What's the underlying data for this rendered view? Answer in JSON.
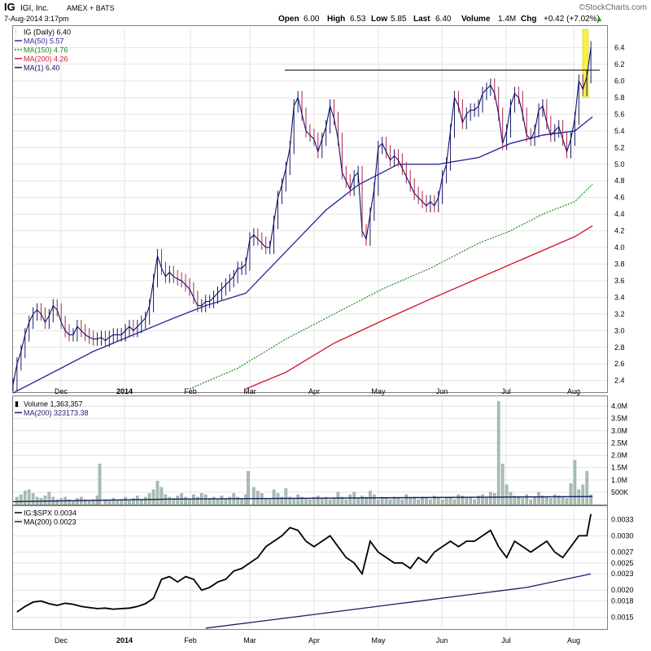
{
  "header": {
    "symbol": "IG",
    "company": "IGI, Inc.",
    "exchange": "AMEX + BATS",
    "datetime": "7-Aug-2014 3:17pm",
    "open_label": "Open",
    "open": "6.00",
    "high_label": "High",
    "high": "6.53",
    "low_label": "Low",
    "low": "5.85",
    "last_label": "Last",
    "last": "6.40",
    "volume_label": "Volume",
    "volume": "1.4M",
    "chg_label": "Chg",
    "chg": "+0.42 (+7.02%)",
    "watermark": "©StockCharts.com"
  },
  "colors": {
    "price": "#1a1a66",
    "ma50": "#2c2c9a",
    "ma150": "#1b8a1b",
    "ma200": "#d41a33",
    "ma1": "#10106b",
    "volume_bar": "#a9bfb3",
    "highlight": "#f5f243"
  },
  "chart_data": [
    {
      "type": "line",
      "panel": "price",
      "title": "IG (Daily) 6.40",
      "legend": [
        {
          "label": "IG (Daily) 6.40",
          "color": "#1a1a66"
        },
        {
          "label": "MA(50) 5.57",
          "color": "#2c2c9a"
        },
        {
          "label": "MA(150) 4.76",
          "color": "#1b8a1b"
        },
        {
          "label": "MA(200) 4.26",
          "color": "#d41a33"
        },
        {
          "label": "MA(1) 6.40",
          "color": "#10106b"
        }
      ],
      "x_labels": [
        "Dec",
        "2014",
        "Feb",
        "Mar",
        "Apr",
        "May",
        "Jun",
        "Jul",
        "Aug"
      ],
      "x_label_pos": [
        75,
        153,
        234,
        307,
        386,
        465,
        543,
        622,
        705
      ],
      "x_range": [
        0,
        730
      ],
      "ylim": [
        2.27,
        6.65
      ],
      "y_ticks": [
        2.4,
        2.6,
        2.8,
        3.0,
        3.2,
        3.4,
        3.6,
        3.8,
        4.0,
        4.2,
        4.4,
        4.6,
        4.8,
        5.0,
        5.2,
        5.4,
        5.6,
        5.8,
        6.0,
        6.2,
        6.4
      ],
      "resistance": {
        "x": [
          350,
          737
        ],
        "y": 6.13
      },
      "series": [
        {
          "name": "IG",
          "x": [
            0,
            5,
            10,
            15,
            20,
            25,
            30,
            35,
            40,
            45,
            50,
            55,
            60,
            65,
            70,
            75,
            80,
            85,
            90,
            95,
            100,
            105,
            110,
            115,
            120,
            125,
            130,
            135,
            140,
            145,
            150,
            155,
            160,
            165,
            170,
            175,
            180,
            185,
            190,
            195,
            200,
            205,
            210,
            215,
            220,
            225,
            230,
            235,
            240,
            245,
            250,
            255,
            260,
            265,
            270,
            275,
            280,
            285,
            290,
            295,
            300,
            305,
            310,
            315,
            320,
            325,
            330,
            335,
            340,
            345,
            350,
            355,
            360,
            365,
            370,
            375,
            380,
            385,
            390,
            395,
            400,
            405,
            410,
            415,
            420,
            425,
            430,
            435,
            440,
            445,
            450,
            455,
            460,
            465,
            470,
            475,
            480,
            485,
            490,
            495,
            500,
            505,
            510,
            515,
            520,
            525,
            530,
            535,
            540,
            545,
            550,
            555,
            560,
            565,
            570,
            575,
            580,
            585,
            590,
            595,
            600,
            605,
            610,
            615,
            620,
            625,
            630,
            635,
            640,
            645,
            650,
            655,
            660,
            665,
            670,
            675,
            680,
            685,
            690,
            695,
            700,
            705,
            710,
            715,
            720
          ],
          "values": [
            2.35,
            2.6,
            2.75,
            2.95,
            3.1,
            3.2,
            3.25,
            3.2,
            3.1,
            3.18,
            3.3,
            3.25,
            3.1,
            3.0,
            2.95,
            2.95,
            3.05,
            3.0,
            2.95,
            2.92,
            2.9,
            2.9,
            2.92,
            2.88,
            2.92,
            2.95,
            2.95,
            2.95,
            3.0,
            3.05,
            3.0,
            3.05,
            3.1,
            3.15,
            3.3,
            3.6,
            3.9,
            3.75,
            3.65,
            3.7,
            3.65,
            3.62,
            3.6,
            3.55,
            3.5,
            3.4,
            3.3,
            3.3,
            3.35,
            3.35,
            3.4,
            3.45,
            3.5,
            3.55,
            3.6,
            3.65,
            3.75,
            3.75,
            3.8,
            4.1,
            4.15,
            4.1,
            4.05,
            4.0,
            4.0,
            4.3,
            4.6,
            4.75,
            4.95,
            5.2,
            5.7,
            5.8,
            5.6,
            5.4,
            5.35,
            5.3,
            5.15,
            5.3,
            5.45,
            5.7,
            5.55,
            5.3,
            4.9,
            4.8,
            4.7,
            4.85,
            4.9,
            4.2,
            4.1,
            4.4,
            4.7,
            5.2,
            5.25,
            5.15,
            5.05,
            5.1,
            5.05,
            4.95,
            4.85,
            4.75,
            4.65,
            4.6,
            4.55,
            4.5,
            4.55,
            4.5,
            4.6,
            4.85,
            5.0,
            5.4,
            5.8,
            5.7,
            5.5,
            5.6,
            5.65,
            5.65,
            5.7,
            5.85,
            5.9,
            5.95,
            5.85,
            5.6,
            5.25,
            5.4,
            5.7,
            5.85,
            5.8,
            5.6,
            5.35,
            5.3,
            5.4,
            5.65,
            5.7,
            5.5,
            5.35,
            5.4,
            5.45,
            5.3,
            5.15,
            5.3,
            5.55,
            6.0,
            5.9,
            6.05,
            6.4
          ]
        },
        {
          "name": "MA(50)",
          "x": [
            0,
            60,
            100,
            150,
            200,
            240,
            290,
            340,
            390,
            430,
            480,
            530,
            580,
            620,
            660,
            700,
            722
          ],
          "values": [
            2.25,
            2.55,
            2.75,
            2.95,
            3.15,
            3.3,
            3.45,
            3.95,
            4.45,
            4.75,
            5.0,
            5.0,
            5.08,
            5.25,
            5.35,
            5.4,
            5.57
          ]
        },
        {
          "name": "MA(150)",
          "x": [
            220,
            280,
            340,
            400,
            460,
            520,
            580,
            620,
            660,
            700,
            722
          ],
          "values": [
            2.3,
            2.55,
            2.9,
            3.2,
            3.5,
            3.75,
            4.05,
            4.2,
            4.4,
            4.55,
            4.76
          ]
        },
        {
          "name": "MA(200)",
          "x": [
            290,
            340,
            400,
            460,
            520,
            580,
            640,
            700,
            722
          ],
          "values": [
            2.3,
            2.5,
            2.85,
            3.12,
            3.38,
            3.63,
            3.88,
            4.13,
            4.26
          ]
        }
      ]
    },
    {
      "type": "bar",
      "panel": "volume",
      "title": "Volume 1,363,357",
      "legend": [
        {
          "label": "Volume 1,363,357",
          "color": "#a9bfb3"
        },
        {
          "label": "MA(200) 323173.38",
          "color": "#1a1a66"
        }
      ],
      "ylim": [
        0,
        4300000
      ],
      "y_ticks": [
        500000,
        1000000,
        1500000,
        2000000,
        2500000,
        3000000,
        3500000,
        4000000
      ],
      "y_tick_labels": [
        "500K",
        "1.0M",
        "1.5M",
        "2.0M",
        "2.5M",
        "3.0M",
        "3.5M",
        "4.0M"
      ],
      "bars": {
        "x": [
          5,
          10,
          15,
          20,
          25,
          30,
          35,
          40,
          45,
          50,
          55,
          60,
          65,
          70,
          75,
          80,
          85,
          90,
          95,
          100,
          105,
          108,
          115,
          120,
          125,
          130,
          135,
          140,
          145,
          150,
          155,
          160,
          165,
          170,
          175,
          180,
          185,
          190,
          195,
          200,
          205,
          210,
          215,
          220,
          225,
          230,
          235,
          240,
          245,
          250,
          255,
          260,
          265,
          270,
          275,
          280,
          285,
          290,
          293,
          300,
          305,
          310,
          315,
          320,
          325,
          330,
          335,
          340,
          345,
          350,
          355,
          360,
          365,
          370,
          375,
          380,
          385,
          390,
          395,
          400,
          405,
          410,
          415,
          420,
          425,
          430,
          435,
          440,
          445,
          450,
          455,
          460,
          465,
          470,
          475,
          480,
          485,
          490,
          495,
          500,
          505,
          510,
          515,
          520,
          525,
          530,
          535,
          540,
          545,
          550,
          555,
          560,
          565,
          570,
          575,
          580,
          585,
          590,
          595,
          600,
          605,
          610,
          615,
          620,
          625,
          630,
          635,
          640,
          645,
          650,
          655,
          660,
          665,
          670,
          675,
          680,
          685,
          690,
          695,
          700,
          705,
          710,
          715,
          720
        ],
        "values": [
          300000,
          400000,
          550000,
          600000,
          450000,
          300000,
          250000,
          350000,
          500000,
          300000,
          200000,
          250000,
          300000,
          200000,
          150000,
          250000,
          300000,
          200000,
          150000,
          200000,
          350000,
          1650000,
          200000,
          150000,
          250000,
          150000,
          200000,
          300000,
          150000,
          250000,
          350000,
          200000,
          300000,
          450000,
          600000,
          950000,
          700000,
          400000,
          300000,
          250000,
          350000,
          450000,
          300000,
          200000,
          400000,
          300000,
          450000,
          400000,
          250000,
          300000,
          200000,
          350000,
          250000,
          300000,
          450000,
          300000,
          250000,
          400000,
          1350000,
          700000,
          550000,
          450000,
          250000,
          200000,
          600000,
          450000,
          300000,
          650000,
          300000,
          250000,
          400000,
          300000,
          250000,
          200000,
          300000,
          350000,
          250000,
          300000,
          200000,
          250000,
          500000,
          300000,
          200000,
          400000,
          500000,
          250000,
          350000,
          300000,
          550000,
          400000,
          200000,
          300000,
          250000,
          200000,
          300000,
          250000,
          200000,
          400000,
          250000,
          300000,
          200000,
          300000,
          250000,
          200000,
          350000,
          300000,
          200000,
          250000,
          300000,
          200000,
          400000,
          350000,
          250000,
          300000,
          200000,
          350000,
          400000,
          300000,
          500000,
          450000,
          4200000,
          1650000,
          800000,
          500000,
          350000,
          300000,
          250000,
          400000,
          200000,
          300000,
          500000,
          350000,
          300000,
          250000,
          400000,
          350000,
          300000,
          250000,
          850000,
          1800000,
          600000,
          800000,
          1350000,
          400000
        ]
      },
      "ma200": {
        "x": [
          0,
          200,
          400,
          600,
          722
        ],
        "values": [
          120000,
          220000,
          260000,
          300000,
          323173
        ]
      }
    },
    {
      "type": "line",
      "panel": "ratio",
      "title": "IG:$SPX 0.0034",
      "legend": [
        {
          "label": "IG:$SPX 0.0034",
          "color": "#000000"
        },
        {
          "label": "MA(200) 0.0023",
          "color": "#1a1a66"
        }
      ],
      "ylim": [
        0.0013,
        0.0035
      ],
      "y_ticks": [
        0.0015,
        0.0018,
        0.002,
        0.0023,
        0.0025,
        0.0027,
        0.003,
        0.0033
      ],
      "y_tick_labels": [
        "0.0015",
        "0.0018",
        "0.0020",
        "0.0023",
        "0.0025",
        "0.0027",
        "0.0030",
        "0.0033"
      ],
      "series": [
        {
          "name": "IG:$SPX",
          "x": [
            5,
            15,
            25,
            35,
            45,
            55,
            65,
            75,
            85,
            95,
            105,
            115,
            125,
            135,
            145,
            155,
            165,
            175,
            185,
            195,
            205,
            215,
            225,
            235,
            245,
            255,
            265,
            275,
            285,
            295,
            305,
            315,
            325,
            335,
            345,
            355,
            365,
            375,
            385,
            395,
            405,
            415,
            425,
            435,
            445,
            455,
            465,
            475,
            485,
            495,
            505,
            515,
            525,
            535,
            545,
            555,
            565,
            575,
            585,
            595,
            605,
            615,
            625,
            635,
            645,
            655,
            665,
            675,
            685,
            695,
            705,
            715,
            720
          ],
          "values": [
            0.0016,
            0.0017,
            0.00178,
            0.0018,
            0.00175,
            0.00172,
            0.00176,
            0.00174,
            0.0017,
            0.00168,
            0.00166,
            0.00167,
            0.00165,
            0.00166,
            0.00167,
            0.0017,
            0.00175,
            0.00185,
            0.0022,
            0.00225,
            0.00215,
            0.00225,
            0.0022,
            0.002,
            0.00205,
            0.00215,
            0.0022,
            0.00235,
            0.0024,
            0.0025,
            0.0026,
            0.0028,
            0.0029,
            0.003,
            0.00315,
            0.0031,
            0.0029,
            0.0028,
            0.0029,
            0.003,
            0.0028,
            0.0026,
            0.0025,
            0.0023,
            0.0029,
            0.0027,
            0.0026,
            0.0025,
            0.0025,
            0.0024,
            0.0026,
            0.0025,
            0.0027,
            0.0028,
            0.0029,
            0.0028,
            0.0029,
            0.0029,
            0.003,
            0.0031,
            0.0028,
            0.0026,
            0.0029,
            0.0028,
            0.0027,
            0.0028,
            0.0029,
            0.0027,
            0.0026,
            0.0028,
            0.003,
            0.003,
            0.0034
          ]
        },
        {
          "name": "MA(200)",
          "x": [
            240,
            320,
            400,
            480,
            560,
            640,
            720
          ],
          "values": [
            0.0013,
            0.00145,
            0.0016,
            0.00175,
            0.0019,
            0.00205,
            0.0023
          ]
        }
      ]
    }
  ]
}
